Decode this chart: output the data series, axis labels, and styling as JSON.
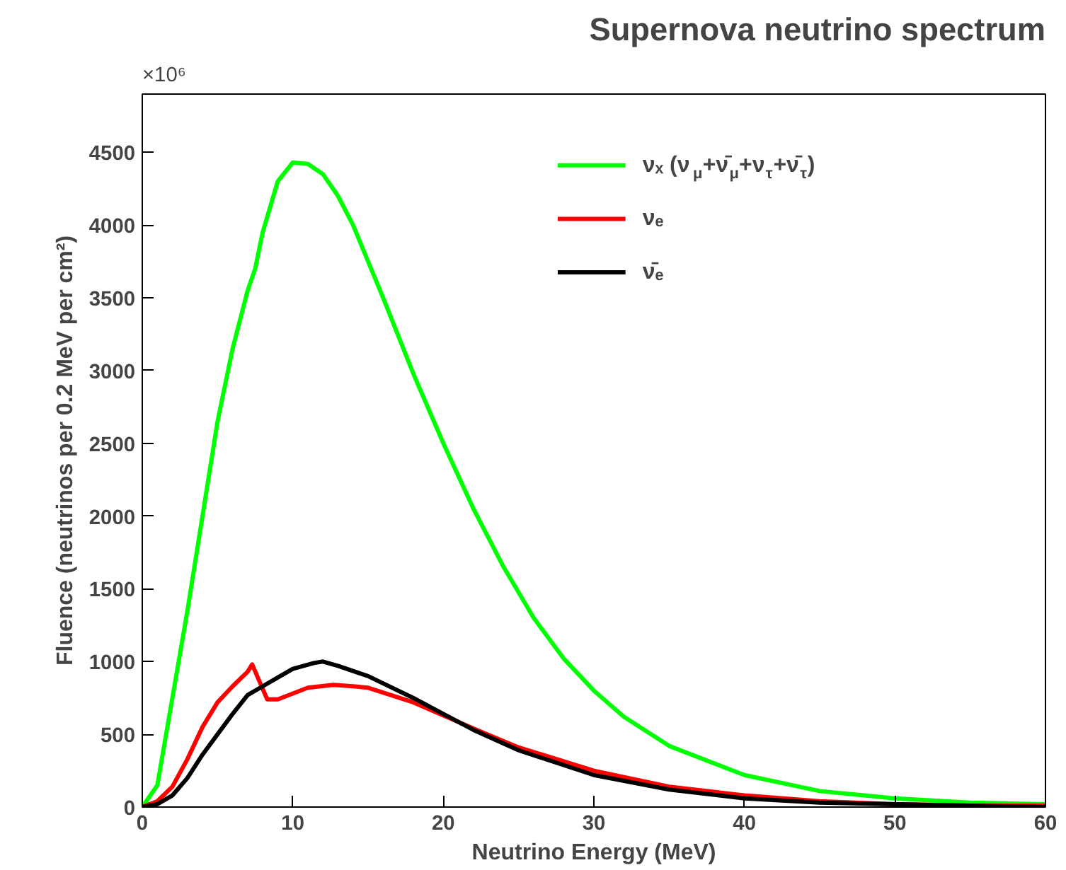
{
  "chart_data": {
    "type": "line",
    "title": "Supernova neutrino spectrum",
    "xlabel": "Neutrino Energy (MeV)",
    "ylabel": "Fluence (neutrinos per 0.2 MeV per cm²)",
    "annotations": [
      "×10⁶"
    ],
    "xlim": [
      0,
      60
    ],
    "ylim": [
      0,
      4900
    ],
    "xticks": [
      0,
      10,
      20,
      30,
      40,
      50,
      60
    ],
    "yticks": [
      0,
      500,
      1000,
      1500,
      2000,
      2500,
      3000,
      3500,
      4000,
      4500
    ],
    "grid": false,
    "legend": "top right",
    "marker": "none",
    "line_style": "solid",
    "series": [
      {
        "name": "νₓ (ν$_{μ}$+ν̄$_{μ}$+ν$_{τ}$+ν̄$_{τ}$)",
        "color": "#00ff00",
        "x": [
          0,
          1,
          2,
          3,
          4,
          5,
          6,
          7,
          7.5,
          8,
          9,
          10,
          11,
          12,
          13,
          14,
          15,
          16,
          18,
          20,
          22,
          24,
          26,
          28,
          30,
          32,
          35,
          40,
          45,
          50,
          55,
          60
        ],
        "values": [
          0,
          150,
          750,
          1350,
          2000,
          2650,
          3150,
          3550,
          3700,
          3950,
          4300,
          4430,
          4420,
          4350,
          4200,
          4000,
          3750,
          3500,
          2980,
          2500,
          2050,
          1650,
          1300,
          1020,
          800,
          620,
          420,
          220,
          110,
          60,
          30,
          20
        ]
      },
      {
        "name": "νₑ",
        "color": "#ff0000",
        "x": [
          0,
          1,
          2,
          3,
          4,
          5,
          6,
          7,
          7.3,
          7.8,
          8.3,
          9,
          10,
          11,
          12.7,
          14,
          15,
          18,
          20,
          22,
          25,
          30,
          35,
          40,
          45,
          50,
          55,
          60
        ],
        "values": [
          0,
          40,
          140,
          330,
          550,
          720,
          830,
          930,
          980,
          860,
          740,
          740,
          780,
          820,
          840,
          830,
          820,
          720,
          630,
          540,
          410,
          250,
          140,
          80,
          40,
          20,
          10,
          10
        ]
      },
      {
        "name": "ν̄ₑ",
        "color": "#000000",
        "x": [
          0,
          1,
          2,
          3,
          4,
          5,
          6,
          7,
          8,
          9,
          10,
          11.4,
          12,
          13,
          15,
          18,
          20,
          22,
          25,
          30,
          35,
          40,
          45,
          50,
          55,
          60
        ],
        "values": [
          0,
          20,
          80,
          200,
          360,
          500,
          640,
          770,
          830,
          890,
          950,
          990,
          1000,
          970,
          900,
          750,
          640,
          530,
          390,
          220,
          120,
          60,
          30,
          20,
          10,
          0
        ]
      }
    ]
  }
}
